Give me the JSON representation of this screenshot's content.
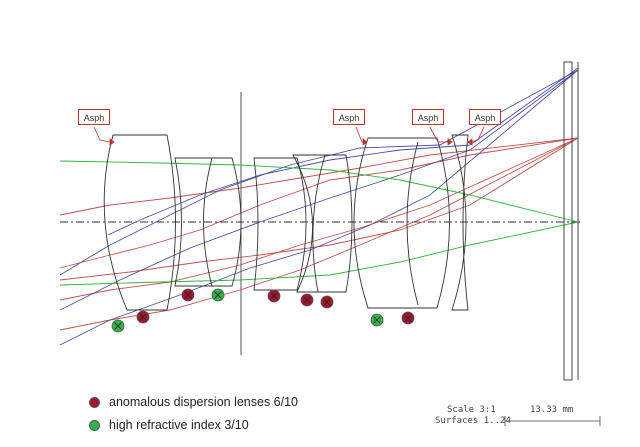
{
  "asph_labels": [
    {
      "id": "asph1",
      "text": "Asph"
    },
    {
      "id": "asph2",
      "text": "Asph"
    },
    {
      "id": "asph3",
      "text": "Asph"
    },
    {
      "id": "asph4",
      "text": "Asph"
    }
  ],
  "legend": {
    "anomalous": {
      "text": "anomalous dispersion lenses 6/10",
      "color": "#a3172a"
    },
    "high_refractive": {
      "text": "high refractive index  3/10",
      "color": "#2fb34a"
    }
  },
  "scale": {
    "scale_text": "Scale 3:1",
    "surfaces_text": "Surfaces 1..24",
    "length_text": "13.33 mm"
  },
  "colors": {
    "ray_red": "#c0504d",
    "ray_blue": "#4b4fa8",
    "ray_green": "#33b33b",
    "lens_outline": "#333333"
  }
}
